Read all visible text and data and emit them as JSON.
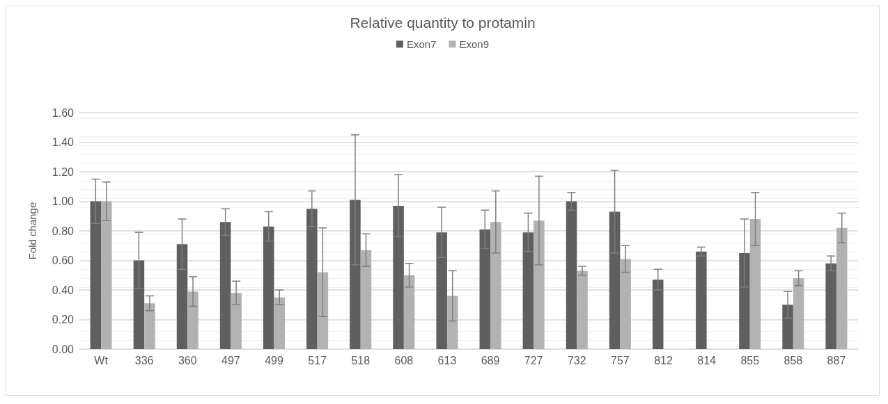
{
  "chart_data": {
    "type": "bar",
    "title": "Relative quantity to protamin",
    "ylabel": "Fold change",
    "categories": [
      "Wt",
      "336",
      "360",
      "497",
      "499",
      "517",
      "518",
      "608",
      "613",
      "689",
      "727",
      "732",
      "757",
      "812",
      "814",
      "855",
      "858",
      "887"
    ],
    "series": [
      {
        "name": "Exon7",
        "color": "#5f5f5f",
        "values": [
          1.0,
          0.6,
          0.71,
          0.86,
          0.83,
          0.95,
          1.01,
          0.97,
          0.79,
          0.81,
          0.79,
          1.0,
          0.93,
          0.47,
          0.66,
          0.65,
          0.3,
          0.58
        ],
        "errors": [
          0.15,
          0.19,
          0.17,
          0.09,
          0.1,
          0.12,
          0.44,
          0.21,
          0.17,
          0.13,
          0.13,
          0.06,
          0.28,
          0.07,
          0.03,
          0.23,
          0.09,
          0.05
        ]
      },
      {
        "name": "Exon9",
        "color": "#b2b2b2",
        "values": [
          1.0,
          0.31,
          0.39,
          0.38,
          0.35,
          0.52,
          0.67,
          0.5,
          0.36,
          0.86,
          0.87,
          0.53,
          0.61,
          null,
          null,
          0.88,
          0.48,
          0.82
        ],
        "errors": [
          0.13,
          0.05,
          0.1,
          0.08,
          0.05,
          0.3,
          0.11,
          0.08,
          0.17,
          0.21,
          0.3,
          0.03,
          0.09,
          null,
          null,
          0.18,
          0.05,
          0.1
        ]
      }
    ],
    "ylim": [
      0,
      1.6
    ],
    "yticks": [
      {
        "value": 0,
        "label": "0.00"
      },
      {
        "value": 0.2,
        "label": "0.20"
      },
      {
        "value": 0.4,
        "label": "0.40"
      },
      {
        "value": 0.6,
        "label": "0.60"
      },
      {
        "value": 0.8,
        "label": "0.80"
      },
      {
        "value": 1.0,
        "label": "1.00"
      },
      {
        "value": 1.2,
        "label": "1.20"
      },
      {
        "value": 1.4,
        "label": "1.40"
      },
      {
        "value": 1.6,
        "label": "1.60"
      }
    ],
    "grid": "y",
    "legend": "top"
  }
}
